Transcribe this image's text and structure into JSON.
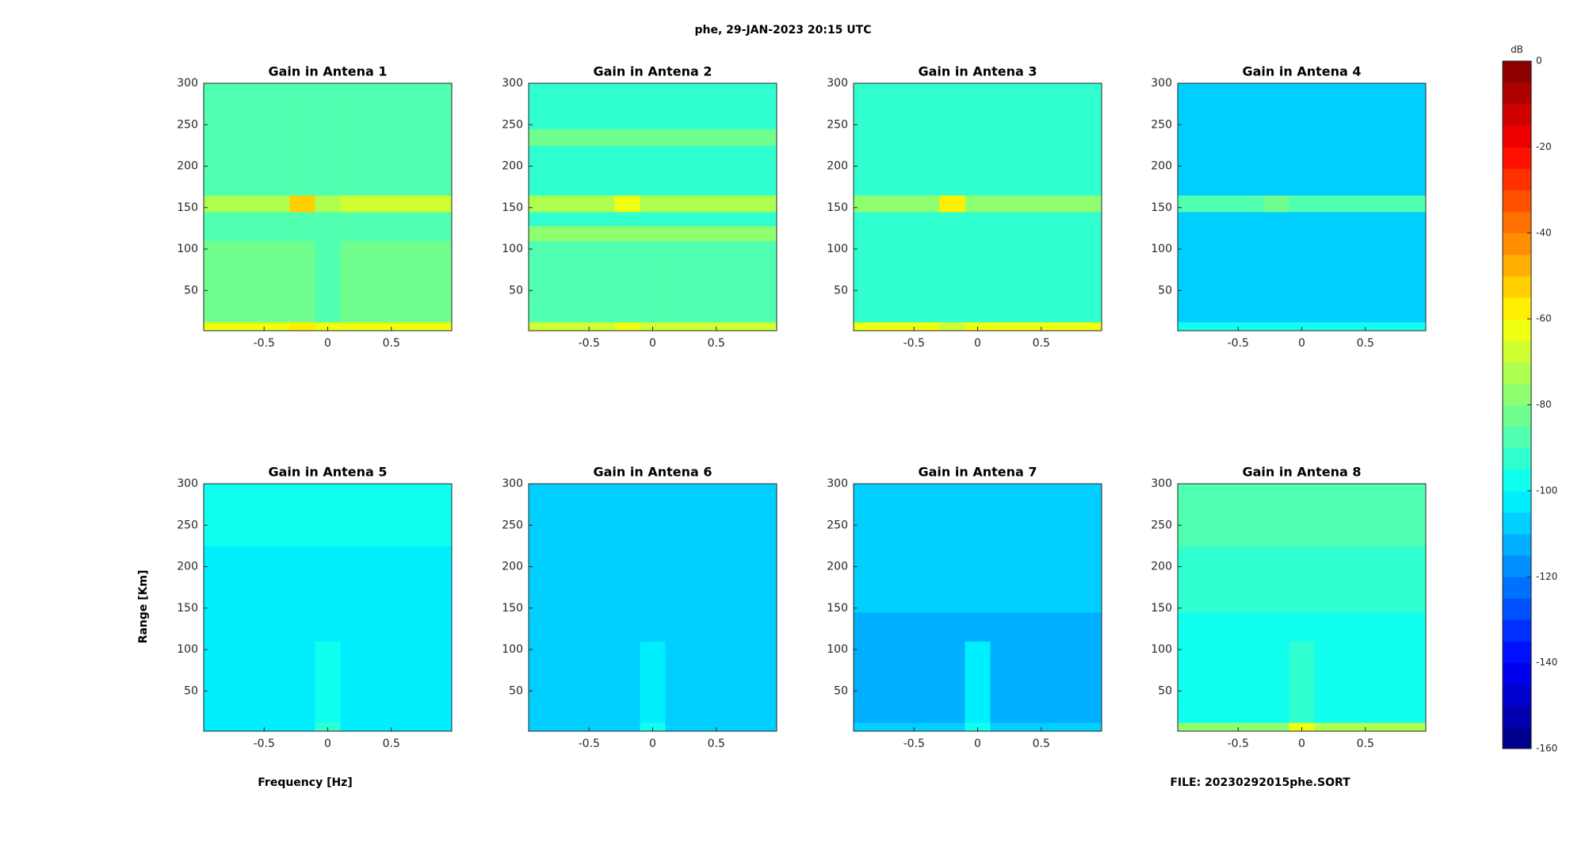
{
  "figure": {
    "title": "phe, 29-JAN-2023 20:15 UTC",
    "xlabel": "Frequency [Hz]",
    "ylabel": "Range [Km]",
    "file": "FILE: 20230292015phe.SORT",
    "colorbar": {
      "label": "dB",
      "clim": [
        -160,
        0
      ],
      "ticks": [
        0,
        -20,
        -40,
        -60,
        -80,
        -100,
        -120,
        -140,
        -160
      ],
      "levels": 32,
      "colormap": "jet"
    }
  },
  "chart_data": [
    {
      "type": "heatmap",
      "title": "Gain in Antena 1",
      "xlim": [
        -0.975,
        0.975
      ],
      "ylim": [
        1.5,
        300
      ],
      "xticks": [
        -0.5,
        0,
        0.5
      ],
      "yticks": [
        50,
        100,
        150,
        200,
        250,
        300
      ],
      "x_edges": [
        -0.975,
        -0.3,
        -0.1,
        0.1,
        0.975
      ],
      "y_edges": [
        1.5,
        12,
        110,
        128,
        145,
        165,
        225,
        245,
        300
      ],
      "z": [
        [
          -65,
          -60,
          -65,
          -62
        ],
        [
          -85,
          -85,
          -86,
          -85
        ],
        [
          -86,
          -86,
          -86,
          -86
        ],
        [
          -86,
          -86,
          -86,
          -86
        ],
        [
          -72,
          -55,
          -72,
          -70
        ],
        [
          -86,
          -86,
          -86,
          -86
        ],
        [
          -87,
          -87,
          -87,
          -87
        ],
        [
          -86,
          -86,
          -86,
          -86
        ]
      ]
    },
    {
      "type": "heatmap",
      "title": "Gain in Antena 2",
      "xlim": [
        -0.975,
        0.975
      ],
      "ylim": [
        1.5,
        300
      ],
      "xticks": [
        -0.5,
        0,
        0.5
      ],
      "yticks": [
        50,
        100,
        150,
        200,
        250,
        300
      ],
      "x_edges": [
        -0.975,
        -0.3,
        -0.1,
        0.1,
        0.975
      ],
      "y_edges": [
        1.5,
        12,
        110,
        128,
        145,
        165,
        225,
        245,
        300
      ],
      "z": [
        [
          -68,
          -62,
          -68,
          -66
        ],
        [
          -90,
          -90,
          -90,
          -90
        ],
        [
          -78,
          -78,
          -78,
          -78
        ],
        [
          -91,
          -91,
          -91,
          -91
        ],
        [
          -74,
          -62,
          -74,
          -72
        ],
        [
          -92,
          -92,
          -92,
          -92
        ],
        [
          -82,
          -82,
          -82,
          -82
        ],
        [
          -92,
          -92,
          -92,
          -92
        ]
      ]
    },
    {
      "type": "heatmap",
      "title": "Gain in Antena 3",
      "xlim": [
        -0.975,
        0.975
      ],
      "ylim": [
        1.5,
        300
      ],
      "xticks": [
        -0.5,
        0,
        0.5
      ],
      "yticks": [
        50,
        100,
        150,
        200,
        250,
        300
      ],
      "x_edges": [
        -0.975,
        -0.3,
        -0.1,
        0.1,
        0.975
      ],
      "y_edges": [
        1.5,
        12,
        110,
        128,
        145,
        165,
        225,
        245,
        300
      ],
      "z": [
        [
          -65,
          -68,
          -62,
          -64
        ],
        [
          -92,
          -92,
          -92,
          -92
        ],
        [
          -92,
          -92,
          -92,
          -92
        ],
        [
          -93,
          -93,
          -93,
          -93
        ],
        [
          -78,
          -58,
          -78,
          -78
        ],
        [
          -93,
          -93,
          -93,
          -93
        ],
        [
          -93,
          -93,
          -93,
          -93
        ],
        [
          -93,
          -93,
          -93,
          -93
        ]
      ]
    },
    {
      "type": "heatmap",
      "title": "Gain in Antena 4",
      "xlim": [
        -0.975,
        0.975
      ],
      "ylim": [
        1.5,
        300
      ],
      "xticks": [
        -0.5,
        0,
        0.5
      ],
      "yticks": [
        50,
        100,
        150,
        200,
        250,
        300
      ],
      "x_edges": [
        -0.975,
        -0.3,
        -0.1,
        0.1,
        0.975
      ],
      "y_edges": [
        1.5,
        12,
        110,
        128,
        145,
        165,
        225,
        245,
        300
      ],
      "z": [
        [
          -100,
          -100,
          -100,
          -98
        ],
        [
          -106,
          -106,
          -106,
          -106
        ],
        [
          -106,
          -106,
          -106,
          -106
        ],
        [
          -106,
          -106,
          -106,
          -106
        ],
        [
          -90,
          -82,
          -90,
          -90
        ],
        [
          -107,
          -107,
          -107,
          -107
        ],
        [
          -107,
          -107,
          -107,
          -107
        ],
        [
          -107,
          -107,
          -107,
          -107
        ]
      ]
    },
    {
      "type": "heatmap",
      "title": "Gain in Antena 5",
      "xlim": [
        -0.975,
        0.975
      ],
      "ylim": [
        1.5,
        300
      ],
      "xticks": [
        -0.5,
        0,
        0.5
      ],
      "yticks": [
        50,
        100,
        150,
        200,
        250,
        300
      ],
      "x_edges": [
        -0.975,
        -0.3,
        -0.1,
        0.1,
        0.975
      ],
      "y_edges": [
        1.5,
        12,
        110,
        128,
        145,
        165,
        225,
        245,
        300
      ],
      "z": [
        [
          -102,
          -102,
          -92,
          -102
        ],
        [
          -102,
          -102,
          -96,
          -102
        ],
        [
          -101,
          -101,
          -101,
          -101
        ],
        [
          -101,
          -101,
          -101,
          -101
        ],
        [
          -101,
          -101,
          -101,
          -101
        ],
        [
          -101,
          -101,
          -101,
          -101
        ],
        [
          -100,
          -100,
          -100,
          -100
        ],
        [
          -100,
          -100,
          -100,
          -100
        ]
      ]
    },
    {
      "type": "heatmap",
      "title": "Gain in Antena 6",
      "xlim": [
        -0.975,
        0.975
      ],
      "ylim": [
        1.5,
        300
      ],
      "xticks": [
        -0.5,
        0,
        0.5
      ],
      "yticks": [
        50,
        100,
        150,
        200,
        250,
        300
      ],
      "x_edges": [
        -0.975,
        -0.3,
        -0.1,
        0.1,
        0.975
      ],
      "y_edges": [
        1.5,
        12,
        110,
        128,
        145,
        165,
        225,
        245,
        300
      ],
      "z": [
        [
          -108,
          -108,
          -98,
          -108
        ],
        [
          -109,
          -109,
          -102,
          -109
        ],
        [
          -109,
          -109,
          -109,
          -109
        ],
        [
          -108,
          -108,
          -108,
          -108
        ],
        [
          -108,
          -108,
          -108,
          -108
        ],
        [
          -108,
          -108,
          -108,
          -108
        ],
        [
          -107,
          -107,
          -107,
          -107
        ],
        [
          -106,
          -106,
          -106,
          -106
        ]
      ]
    },
    {
      "type": "heatmap",
      "title": "Gain in Antena 7",
      "xlim": [
        -0.975,
        0.975
      ],
      "ylim": [
        1.5,
        300
      ],
      "xticks": [
        -0.5,
        0,
        0.5
      ],
      "yticks": [
        50,
        100,
        150,
        200,
        250,
        300
      ],
      "x_edges": [
        -0.975,
        -0.3,
        -0.1,
        0.1,
        0.975
      ],
      "y_edges": [
        1.5,
        12,
        110,
        128,
        145,
        165,
        225,
        245,
        300
      ],
      "z": [
        [
          -110,
          -110,
          -100,
          -110
        ],
        [
          -111,
          -111,
          -104,
          -111
        ],
        [
          -111,
          -111,
          -111,
          -111
        ],
        [
          -111,
          -111,
          -111,
          -111
        ],
        [
          -110,
          -110,
          -110,
          -110
        ],
        [
          -110,
          -110,
          -110,
          -110
        ],
        [
          -109,
          -109,
          -109,
          -109
        ],
        [
          -109,
          -109,
          -109,
          -109
        ]
      ]
    },
    {
      "type": "heatmap",
      "title": "Gain in Antena 8",
      "xlim": [
        -0.975,
        0.975
      ],
      "ylim": [
        1.5,
        300
      ],
      "xticks": [
        -0.5,
        0,
        0.5
      ],
      "yticks": [
        50,
        100,
        150,
        200,
        250,
        300
      ],
      "x_edges": [
        -0.975,
        -0.3,
        -0.1,
        0.1,
        0.975
      ],
      "y_edges": [
        1.5,
        12,
        110,
        128,
        145,
        165,
        225,
        245,
        300
      ],
      "z": [
        [
          -78,
          -78,
          -62,
          -72
        ],
        [
          -98,
          -98,
          -95,
          -96
        ],
        [
          -97,
          -97,
          -97,
          -97
        ],
        [
          -96,
          -96,
          -96,
          -96
        ],
        [
          -95,
          -95,
          -95,
          -95
        ],
        [
          -92,
          -92,
          -92,
          -92
        ],
        [
          -90,
          -90,
          -90,
          -90
        ],
        [
          -90,
          -90,
          -90,
          -90
        ]
      ]
    }
  ]
}
